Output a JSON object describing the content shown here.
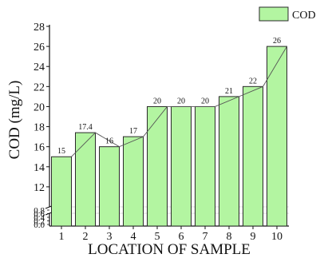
{
  "chart_data": {
    "type": "bar",
    "categories": [
      "1",
      "2",
      "3",
      "4",
      "5",
      "6",
      "7",
      "8",
      "9",
      "10"
    ],
    "series": [
      {
        "name": "COD",
        "values": [
          15,
          17.4,
          16,
          17,
          20,
          20,
          20,
          21,
          22,
          26
        ]
      }
    ],
    "data_labels": [
      "15",
      "17.4",
      "16",
      "17",
      "20",
      "20",
      "20",
      "21",
      "22",
      "26"
    ],
    "xlabel": "LOCATION OF SAMPLE",
    "ylabel": "COD (mg/L)",
    "ylim": [
      10,
      28
    ],
    "y_ticks_upper": [
      "12",
      "14",
      "16",
      "18",
      "20",
      "22",
      "24",
      "26",
      "28"
    ],
    "y_ticks_lower": [
      "0.0",
      "0.2",
      "0.4",
      "0.6",
      "0.8"
    ],
    "axis_break": true,
    "connecting_line": true,
    "legend_position": "top-right",
    "grid": false,
    "colors": {
      "bar_fill": "#b3f5a1",
      "bar_stroke": "#2a2a2a",
      "line": "#555555"
    }
  }
}
